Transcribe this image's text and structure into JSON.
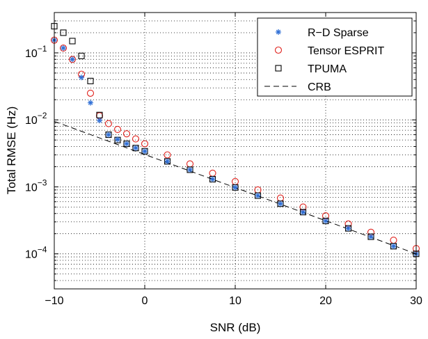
{
  "chart_data": {
    "type": "scatter",
    "xlabel": "SNR (dB)",
    "ylabel": "Total RMSE (Hz)",
    "xlim": [
      -10,
      30
    ],
    "ylim": [
      3e-05,
      0.4
    ],
    "yscale": "log",
    "grid": true,
    "legend_position": "top-right",
    "x_ticks": [
      -10,
      0,
      10,
      20,
      30
    ],
    "x_tick_labels": [
      "−10",
      "0",
      "10",
      "20",
      "30"
    ],
    "y_ticks": [
      0.0001,
      0.001,
      0.01,
      0.1
    ],
    "y_tick_mantissa": "10",
    "y_tick_exponents": [
      "−4",
      "−3",
      "−2",
      "−1"
    ],
    "series": [
      {
        "name": "R−D Sparse",
        "marker": "asterisk",
        "color": "#2f6fd6",
        "x": [
          -10,
          -9,
          -8,
          -7,
          -6,
          -5,
          -4,
          -3,
          -2,
          -1,
          0,
          2.5,
          5,
          7.5,
          10,
          12.5,
          15,
          17.5,
          20,
          22.5,
          25,
          27.5,
          30
        ],
        "y": [
          0.155,
          0.118,
          0.08,
          0.043,
          0.018,
          0.0098,
          0.006,
          0.0051,
          0.0044,
          0.0038,
          0.0034,
          0.0024,
          0.0018,
          0.0013,
          0.00098,
          0.00074,
          0.00056,
          0.00042,
          0.00031,
          0.00024,
          0.00018,
          0.00013,
          0.0001
        ]
      },
      {
        "name": "Tensor ESPRIT",
        "marker": "circle",
        "color": "#e0201b",
        "x": [
          -10,
          -9,
          -8,
          -7,
          -6,
          -5,
          -4,
          -3,
          -2,
          -1,
          0,
          2.5,
          5,
          7.5,
          10,
          12.5,
          15,
          17.5,
          20,
          22.5,
          25,
          27.5,
          30
        ],
        "y": [
          0.155,
          0.118,
          0.08,
          0.048,
          0.025,
          0.0115,
          0.0088,
          0.0072,
          0.0062,
          0.0052,
          0.0044,
          0.003,
          0.0022,
          0.0016,
          0.0012,
          0.0009,
          0.00068,
          0.0005,
          0.00037,
          0.00028,
          0.00021,
          0.00016,
          0.00012
        ]
      },
      {
        "name": "TPUMA",
        "marker": "square",
        "color": "#000000",
        "x": [
          -10,
          -9,
          -8,
          -7,
          -6,
          -5,
          -4,
          -3,
          -2,
          -1,
          0,
          2.5,
          5,
          7.5,
          10,
          12.5,
          15,
          17.5,
          20,
          22.5,
          25,
          27.5,
          30
        ],
        "y": [
          0.25,
          0.2,
          0.15,
          0.09,
          0.038,
          0.0118,
          0.006,
          0.005,
          0.0044,
          0.0038,
          0.0034,
          0.0024,
          0.0018,
          0.0013,
          0.00098,
          0.00074,
          0.00056,
          0.00042,
          0.00031,
          0.00024,
          0.00018,
          0.00013,
          0.0001
        ]
      },
      {
        "name": "CRB",
        "marker": "dashed-line",
        "color": "#000000",
        "x": [
          -10,
          30
        ],
        "y": [
          0.0095,
          0.0001
        ]
      }
    ]
  }
}
